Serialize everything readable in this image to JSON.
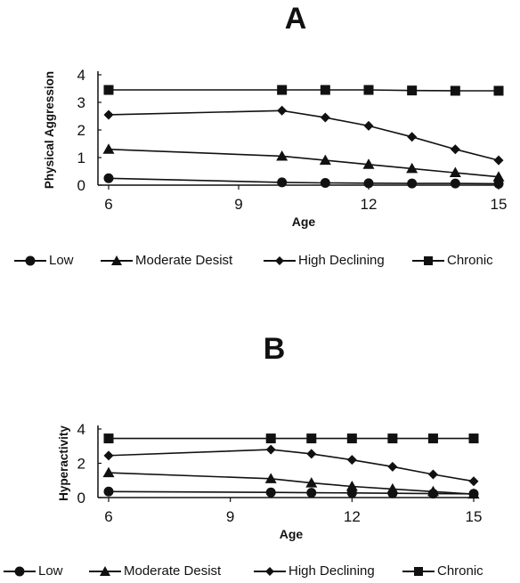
{
  "chart_data": [
    {
      "type": "line",
      "panel_label": "A",
      "xlabel": "Age",
      "ylabel": "Physical Aggression",
      "xlim": [
        6,
        15
      ],
      "ylim": [
        0,
        4
      ],
      "xticks": [
        "6",
        "9",
        "12",
        "15"
      ],
      "yticks": [
        "0",
        "1",
        "2",
        "3",
        "4"
      ],
      "legend_position": "bottom",
      "series": [
        {
          "name": "Low",
          "marker": "circle",
          "x": [
            6,
            10,
            11,
            12,
            13,
            14,
            15
          ],
          "values": [
            0.25,
            0.1,
            0.08,
            0.07,
            0.06,
            0.06,
            0.05
          ]
        },
        {
          "name": "Moderate Desist",
          "marker": "triangle",
          "x": [
            6,
            10,
            11,
            12,
            13,
            14,
            15
          ],
          "values": [
            1.3,
            1.05,
            0.9,
            0.75,
            0.6,
            0.45,
            0.3
          ]
        },
        {
          "name": "High Declining",
          "marker": "diamond",
          "x": [
            6,
            10,
            11,
            12,
            13,
            14,
            15
          ],
          "values": [
            2.55,
            2.7,
            2.45,
            2.15,
            1.75,
            1.3,
            0.9
          ]
        },
        {
          "name": "Chronic",
          "marker": "square",
          "x": [
            6,
            10,
            11,
            12,
            13,
            14,
            15
          ],
          "values": [
            3.45,
            3.45,
            3.45,
            3.45,
            3.43,
            3.42,
            3.42
          ]
        }
      ]
    },
    {
      "type": "line",
      "panel_label": "B",
      "xlabel": "Age",
      "ylabel": "Hyperactivity",
      "xlim": [
        6,
        15
      ],
      "ylim": [
        0,
        4
      ],
      "xticks": [
        "6",
        "9",
        "12",
        "15"
      ],
      "yticks": [
        "0",
        "2",
        "4"
      ],
      "legend_position": "bottom",
      "series": [
        {
          "name": "Low",
          "marker": "circle",
          "x": [
            6,
            10,
            11,
            12,
            13,
            14,
            15
          ],
          "values": [
            0.35,
            0.3,
            0.28,
            0.27,
            0.25,
            0.23,
            0.22
          ]
        },
        {
          "name": "Moderate Desist",
          "marker": "triangle",
          "x": [
            6,
            10,
            11,
            12,
            13,
            14,
            15
          ],
          "values": [
            1.45,
            1.1,
            0.85,
            0.65,
            0.5,
            0.35,
            0.2
          ]
        },
        {
          "name": "High Declining",
          "marker": "diamond",
          "x": [
            6,
            10,
            11,
            12,
            13,
            14,
            15
          ],
          "values": [
            2.45,
            2.8,
            2.55,
            2.2,
            1.8,
            1.35,
            0.95
          ]
        },
        {
          "name": "Chronic",
          "marker": "square",
          "x": [
            6,
            10,
            11,
            12,
            13,
            14,
            15
          ],
          "values": [
            3.45,
            3.45,
            3.45,
            3.45,
            3.45,
            3.45,
            3.45
          ]
        }
      ]
    }
  ]
}
